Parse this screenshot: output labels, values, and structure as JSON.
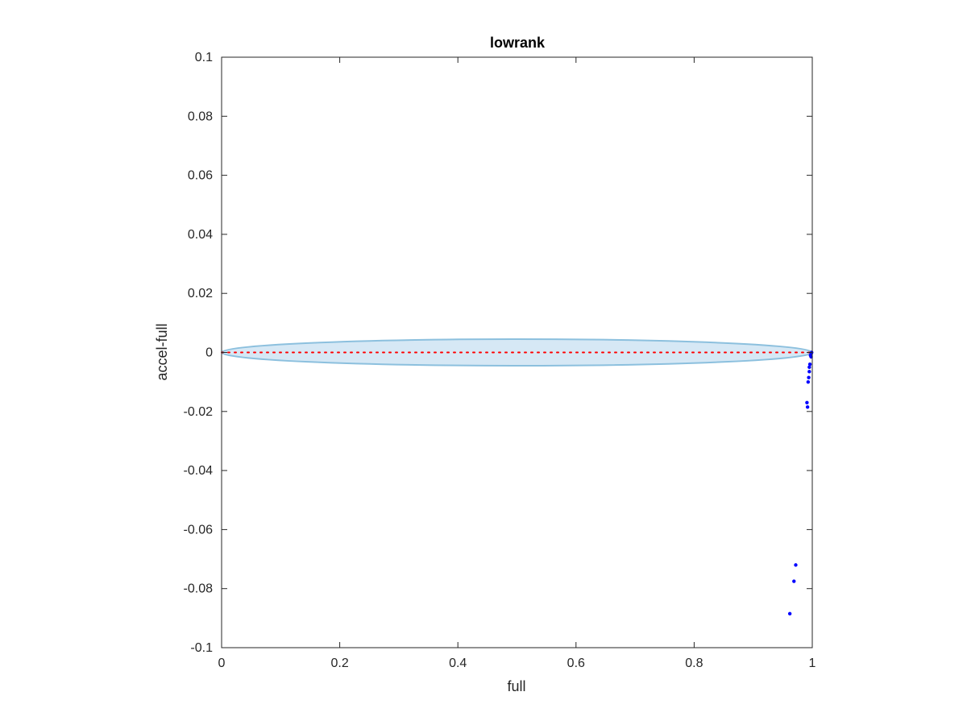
{
  "chart_data": {
    "type": "scatter",
    "title": "lowrank",
    "xlabel": "full",
    "ylabel": "accel-full",
    "xlim": [
      0,
      1
    ],
    "ylim": [
      -0.1,
      0.1
    ],
    "xticks": [
      0,
      0.2,
      0.4,
      0.6,
      0.8,
      1
    ],
    "xtick_labels": [
      "0",
      "0.2",
      "0.4",
      "0.6",
      "0.8",
      "1"
    ],
    "yticks": [
      0.1,
      0.08,
      0.06,
      0.04,
      0.02,
      0,
      -0.02,
      -0.04,
      -0.06,
      -0.08,
      -0.1
    ],
    "ytick_labels": [
      "0.1",
      "0.08",
      "0.06",
      "0.04",
      "0.02",
      "0",
      "-0.02",
      "-0.04",
      "-0.06",
      "-0.08",
      "-0.1"
    ],
    "grid": false,
    "zero_line": {
      "y": 0,
      "from_x": 0,
      "to_x": 1,
      "style": "dotted",
      "color": "#ff0000"
    },
    "band": {
      "shape": "ellipse",
      "x_range": [
        0,
        1
      ],
      "center_y": 0,
      "half_height": 0.0045,
      "fill": "#d6e8f5",
      "stroke": "#8cc0de"
    },
    "points": {
      "color": "#0000ff",
      "x": [
        0.999,
        0.998,
        0.997,
        0.998,
        0.996,
        0.995,
        0.995,
        0.994,
        0.993,
        0.991,
        0.992,
        0.972,
        0.969,
        0.962
      ],
      "y": [
        0.0,
        -0.0005,
        -0.001,
        -0.0015,
        -0.004,
        -0.005,
        -0.0065,
        -0.0085,
        -0.01,
        -0.017,
        -0.0185,
        -0.072,
        -0.0775,
        -0.0885
      ]
    }
  }
}
